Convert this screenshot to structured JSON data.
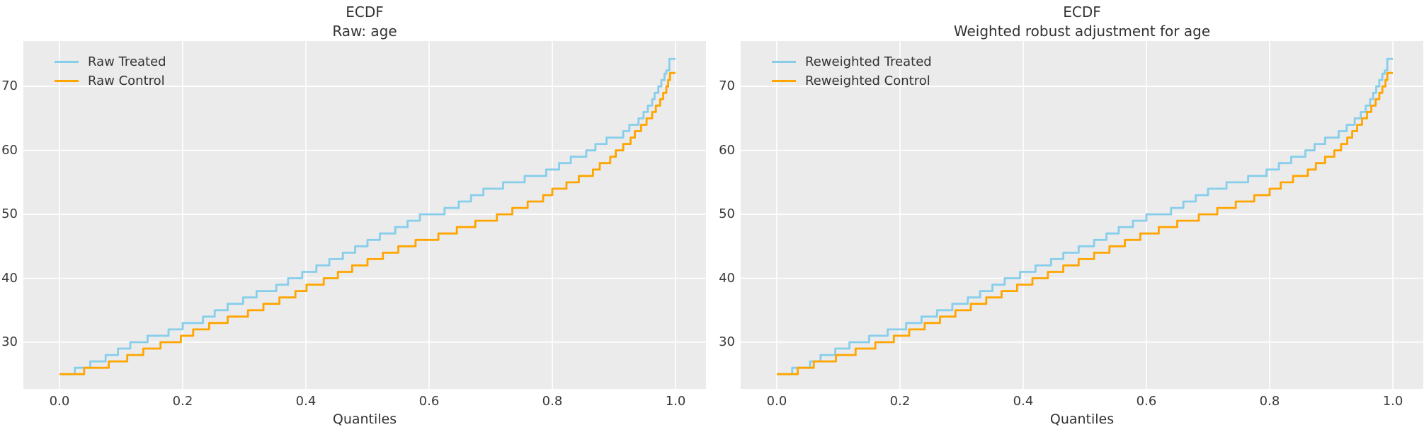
{
  "figure": {
    "background": "#ffffff",
    "plot_background": "#ebebeb",
    "grid_color": "#ffffff",
    "text_color": "#333333",
    "treated_color": "#87CEEB",
    "control_color": "#FFA500"
  },
  "chart_data": [
    {
      "type": "line",
      "subtype": "quantile-step-ecdf",
      "title": "ECDF",
      "subtitle": "Raw: age",
      "xlabel": "Quantiles",
      "ylabel": "",
      "xlim": [
        -0.0586,
        1.0494
      ],
      "ylim": [
        22.7,
        77.1
      ],
      "xticks": [
        0.0,
        0.2,
        0.4,
        0.6,
        0.8,
        1.0
      ],
      "xtick_labels": [
        "0.0",
        "0.2",
        "0.4",
        "0.6",
        "0.8",
        "1.0"
      ],
      "yticks": [
        30,
        40,
        50,
        60,
        70
      ],
      "ytick_labels": [
        "30",
        "40",
        "50",
        "60",
        "70"
      ],
      "grid": true,
      "legend_position": "upper-left",
      "series": [
        {
          "name": "Raw Treated",
          "color": "#87CEEB",
          "step_points": [
            [
              0,
              25
            ],
            [
              0.025,
              26
            ],
            [
              0.05,
              27
            ],
            [
              0.075,
              28
            ],
            [
              0.095,
              29
            ],
            [
              0.115,
              30
            ],
            [
              0.143,
              31
            ],
            [
              0.177,
              32
            ],
            [
              0.2,
              33
            ],
            [
              0.233,
              34
            ],
            [
              0.252,
              35
            ],
            [
              0.273,
              36
            ],
            [
              0.298,
              37
            ],
            [
              0.32,
              38
            ],
            [
              0.352,
              39
            ],
            [
              0.371,
              40
            ],
            [
              0.394,
              41
            ],
            [
              0.417,
              42
            ],
            [
              0.438,
              43
            ],
            [
              0.46,
              44
            ],
            [
              0.48,
              45
            ],
            [
              0.5,
              46
            ],
            [
              0.52,
              47
            ],
            [
              0.545,
              48
            ],
            [
              0.565,
              49
            ],
            [
              0.585,
              50
            ],
            [
              0.625,
              51
            ],
            [
              0.648,
              52
            ],
            [
              0.668,
              53
            ],
            [
              0.688,
              54
            ],
            [
              0.72,
              55
            ],
            [
              0.755,
              56
            ],
            [
              0.79,
              57
            ],
            [
              0.811,
              58
            ],
            [
              0.83,
              59
            ],
            [
              0.855,
              60
            ],
            [
              0.87,
              61
            ],
            [
              0.888,
              62
            ],
            [
              0.915,
              63
            ],
            [
              0.925,
              64
            ],
            [
              0.94,
              65
            ],
            [
              0.948,
              66
            ],
            [
              0.955,
              67
            ],
            [
              0.962,
              68
            ],
            [
              0.966,
              69
            ],
            [
              0.972,
              70
            ],
            [
              0.977,
              71
            ],
            [
              0.982,
              72
            ],
            [
              0.985,
              72.5
            ],
            [
              0.99,
              74.3
            ],
            [
              1,
              74.3
            ]
          ]
        },
        {
          "name": "Raw Control",
          "color": "#FFA500",
          "step_points": [
            [
              0,
              25
            ],
            [
              0.04,
              26
            ],
            [
              0.08,
              27
            ],
            [
              0.11,
              28
            ],
            [
              0.136,
              29
            ],
            [
              0.164,
              30
            ],
            [
              0.197,
              31
            ],
            [
              0.217,
              32
            ],
            [
              0.243,
              33
            ],
            [
              0.273,
              34
            ],
            [
              0.306,
              35
            ],
            [
              0.331,
              36
            ],
            [
              0.357,
              37
            ],
            [
              0.383,
              38
            ],
            [
              0.401,
              39
            ],
            [
              0.429,
              40
            ],
            [
              0.452,
              41
            ],
            [
              0.475,
              42
            ],
            [
              0.5,
              43
            ],
            [
              0.525,
              44
            ],
            [
              0.55,
              45
            ],
            [
              0.578,
              46
            ],
            [
              0.615,
              47
            ],
            [
              0.645,
              48
            ],
            [
              0.675,
              49
            ],
            [
              0.71,
              50
            ],
            [
              0.735,
              51
            ],
            [
              0.76,
              52
            ],
            [
              0.785,
              53
            ],
            [
              0.8,
              54
            ],
            [
              0.823,
              55
            ],
            [
              0.843,
              56
            ],
            [
              0.866,
              57
            ],
            [
              0.877,
              58
            ],
            [
              0.894,
              59
            ],
            [
              0.903,
              60
            ],
            [
              0.915,
              61
            ],
            [
              0.927,
              62
            ],
            [
              0.934,
              63
            ],
            [
              0.944,
              64
            ],
            [
              0.953,
              65
            ],
            [
              0.962,
              66
            ],
            [
              0.968,
              67
            ],
            [
              0.975,
              68
            ],
            [
              0.98,
              69
            ],
            [
              0.985,
              70
            ],
            [
              0.988,
              71
            ],
            [
              0.991,
              72.1
            ],
            [
              1,
              72.1
            ]
          ]
        }
      ]
    },
    {
      "type": "line",
      "subtype": "quantile-step-ecdf",
      "title": "ECDF",
      "subtitle": "Weighted robust adjustment for age",
      "xlabel": "Quantiles",
      "ylabel": "",
      "xlim": [
        -0.0586,
        1.0494
      ],
      "ylim": [
        22.7,
        77.1
      ],
      "xticks": [
        0.0,
        0.2,
        0.4,
        0.6,
        0.8,
        1.0
      ],
      "xtick_labels": [
        "0.0",
        "0.2",
        "0.4",
        "0.6",
        "0.8",
        "1.0"
      ],
      "yticks": [
        30,
        40,
        50,
        60,
        70
      ],
      "ytick_labels": [
        "30",
        "40",
        "50",
        "60",
        "70"
      ],
      "grid": true,
      "legend_position": "upper-left",
      "series": [
        {
          "name": "Reweighted Treated",
          "color": "#87CEEB",
          "step_points": [
            [
              0,
              25
            ],
            [
              0.025,
              26
            ],
            [
              0.054,
              27
            ],
            [
              0.071,
              28
            ],
            [
              0.095,
              29
            ],
            [
              0.118,
              30
            ],
            [
              0.15,
              31
            ],
            [
              0.18,
              32
            ],
            [
              0.21,
              33
            ],
            [
              0.235,
              34
            ],
            [
              0.26,
              35
            ],
            [
              0.285,
              36
            ],
            [
              0.31,
              37
            ],
            [
              0.33,
              38
            ],
            [
              0.35,
              39
            ],
            [
              0.37,
              40
            ],
            [
              0.395,
              41
            ],
            [
              0.42,
              42
            ],
            [
              0.445,
              43
            ],
            [
              0.465,
              44
            ],
            [
              0.49,
              45
            ],
            [
              0.515,
              46
            ],
            [
              0.535,
              47
            ],
            [
              0.555,
              48
            ],
            [
              0.578,
              49
            ],
            [
              0.6,
              50
            ],
            [
              0.64,
              51
            ],
            [
              0.66,
              52
            ],
            [
              0.68,
              53
            ],
            [
              0.7,
              54
            ],
            [
              0.73,
              55
            ],
            [
              0.765,
              56
            ],
            [
              0.795,
              57
            ],
            [
              0.815,
              58
            ],
            [
              0.835,
              59
            ],
            [
              0.858,
              60
            ],
            [
              0.873,
              61
            ],
            [
              0.89,
              62
            ],
            [
              0.912,
              63
            ],
            [
              0.925,
              64
            ],
            [
              0.938,
              65
            ],
            [
              0.948,
              66
            ],
            [
              0.956,
              67
            ],
            [
              0.963,
              68
            ],
            [
              0.968,
              69
            ],
            [
              0.973,
              70
            ],
            [
              0.978,
              71
            ],
            [
              0.983,
              72
            ],
            [
              0.987,
              72.5
            ],
            [
              0.991,
              74.3
            ],
            [
              1,
              74.3
            ]
          ]
        },
        {
          "name": "Reweighted Control",
          "color": "#FFA500",
          "step_points": [
            [
              0,
              25
            ],
            [
              0.034,
              26
            ],
            [
              0.06,
              27
            ],
            [
              0.096,
              28
            ],
            [
              0.128,
              29
            ],
            [
              0.16,
              30
            ],
            [
              0.19,
              31
            ],
            [
              0.215,
              32
            ],
            [
              0.24,
              33
            ],
            [
              0.265,
              34
            ],
            [
              0.29,
              35
            ],
            [
              0.315,
              36
            ],
            [
              0.34,
              37
            ],
            [
              0.365,
              38
            ],
            [
              0.39,
              39
            ],
            [
              0.415,
              40
            ],
            [
              0.44,
              41
            ],
            [
              0.465,
              42
            ],
            [
              0.49,
              43
            ],
            [
              0.515,
              44
            ],
            [
              0.54,
              45
            ],
            [
              0.565,
              46
            ],
            [
              0.59,
              47
            ],
            [
              0.62,
              48
            ],
            [
              0.65,
              49
            ],
            [
              0.685,
              50
            ],
            [
              0.715,
              51
            ],
            [
              0.745,
              52
            ],
            [
              0.775,
              53
            ],
            [
              0.8,
              54
            ],
            [
              0.818,
              55
            ],
            [
              0.838,
              56
            ],
            [
              0.862,
              57
            ],
            [
              0.875,
              58
            ],
            [
              0.89,
              59
            ],
            [
              0.905,
              60
            ],
            [
              0.916,
              61
            ],
            [
              0.926,
              62
            ],
            [
              0.934,
              63
            ],
            [
              0.942,
              64
            ],
            [
              0.95,
              65
            ],
            [
              0.958,
              66
            ],
            [
              0.965,
              67
            ],
            [
              0.972,
              68
            ],
            [
              0.978,
              69
            ],
            [
              0.983,
              70
            ],
            [
              0.988,
              71
            ],
            [
              0.991,
              72.1
            ],
            [
              1,
              72.1
            ]
          ]
        }
      ]
    }
  ]
}
